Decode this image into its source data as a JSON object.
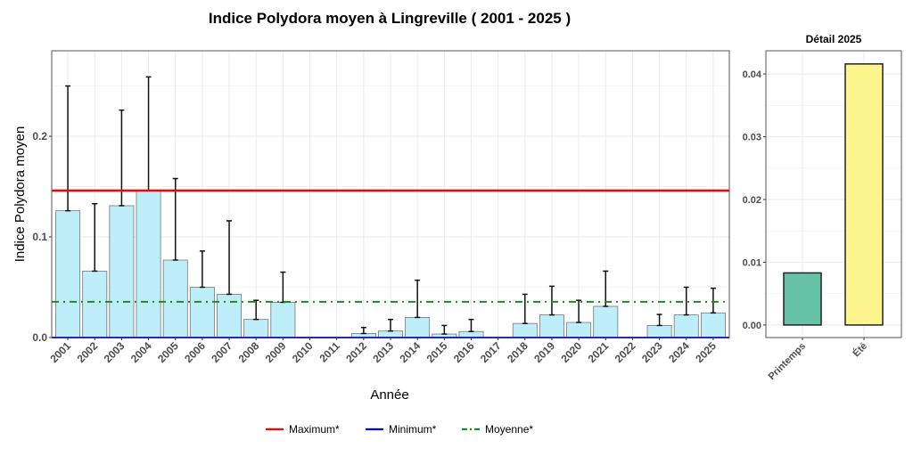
{
  "chart_data": [
    {
      "type": "bar",
      "title": "Indice Polydora moyen à Lingreville ( 2001 - 2025 )",
      "xlabel": "Année",
      "ylabel": "Indice Polydora moyen",
      "ylim": [
        0,
        0.285
      ],
      "yticks": [
        "0.0",
        "0.1",
        "0.2"
      ],
      "ytick_values": [
        0,
        0.1,
        0.2
      ],
      "categories": [
        "2001",
        "2002",
        "2003",
        "2004",
        "2005",
        "2006",
        "2007",
        "2008",
        "2009",
        "2010",
        "2011",
        "2012",
        "2013",
        "2014",
        "2015",
        "2016",
        "2017",
        "2018",
        "2019",
        "2020",
        "2021",
        "2022",
        "2023",
        "2024",
        "2025"
      ],
      "values": [
        0.126,
        0.066,
        0.131,
        0.146,
        0.077,
        0.05,
        0.043,
        0.018,
        0.035,
        null,
        null,
        0.004,
        0.0065,
        0.02,
        0.0035,
        0.006,
        null,
        0.014,
        0.0225,
        0.015,
        0.031,
        null,
        0.012,
        0.0225,
        0.0245
      ],
      "error_upper": [
        0.25,
        0.133,
        0.226,
        0.259,
        0.158,
        0.086,
        0.116,
        0.037,
        0.065,
        null,
        null,
        0.01,
        0.018,
        0.057,
        0.012,
        0.018,
        null,
        0.043,
        0.051,
        0.037,
        0.066,
        null,
        0.023,
        0.05,
        0.049
      ],
      "bar_color": "#bfeefb",
      "grid": true,
      "reference_lines": [
        {
          "name": "Maximum*",
          "value": 0.146,
          "color": "#ff0000",
          "style": "solid"
        },
        {
          "name": "Minimum*",
          "value": 0.0,
          "color": "#0000ff",
          "style": "solid"
        },
        {
          "name": "Moyenne*",
          "value": 0.0355,
          "color": "#1f8a1f",
          "style": "dotdash"
        }
      ],
      "legend_position": "bottom"
    },
    {
      "type": "bar",
      "title": "Détail 2025",
      "categories": [
        "Printemps",
        "Été"
      ],
      "values": [
        0.0083,
        0.0416
      ],
      "colors": [
        "#66c2a5",
        "#fff58f"
      ],
      "ylim": [
        -0.002,
        0.0437
      ],
      "yticks": [
        "0.00",
        "0.01",
        "0.02",
        "0.03",
        "0.04"
      ],
      "ytick_values": [
        0,
        0.01,
        0.02,
        0.03,
        0.04
      ],
      "grid": true
    }
  ]
}
